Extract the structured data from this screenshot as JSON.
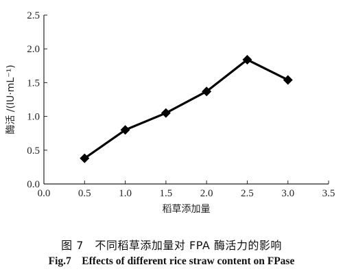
{
  "chart_data": {
    "type": "line",
    "xlabel": "稻草添加量",
    "ylabel": "酶活 /(IU·mL⁻¹)",
    "xlim": [
      0.0,
      3.5
    ],
    "ylim": [
      0.0,
      2.5
    ],
    "x_ticks": [
      "0.0",
      "0.5",
      "1.0",
      "1.5",
      "2.0",
      "2.5",
      "3.0",
      "3.5"
    ],
    "y_ticks": [
      "0.0",
      "0.5",
      "1.0",
      "1.5",
      "2.0",
      "2.5"
    ],
    "grid": false,
    "marker": "diamond",
    "series": [
      {
        "x": [
          0.5,
          1.0,
          1.5,
          2.0,
          2.5,
          3.0
        ],
        "values": [
          0.38,
          0.8,
          1.05,
          1.37,
          1.84,
          1.54
        ]
      }
    ]
  },
  "caption": {
    "zh": "图 7　不同稻草添加量对 FPA 酶活力的影响",
    "en": "Fig.7　Effects of different rice straw content on FPase"
  }
}
